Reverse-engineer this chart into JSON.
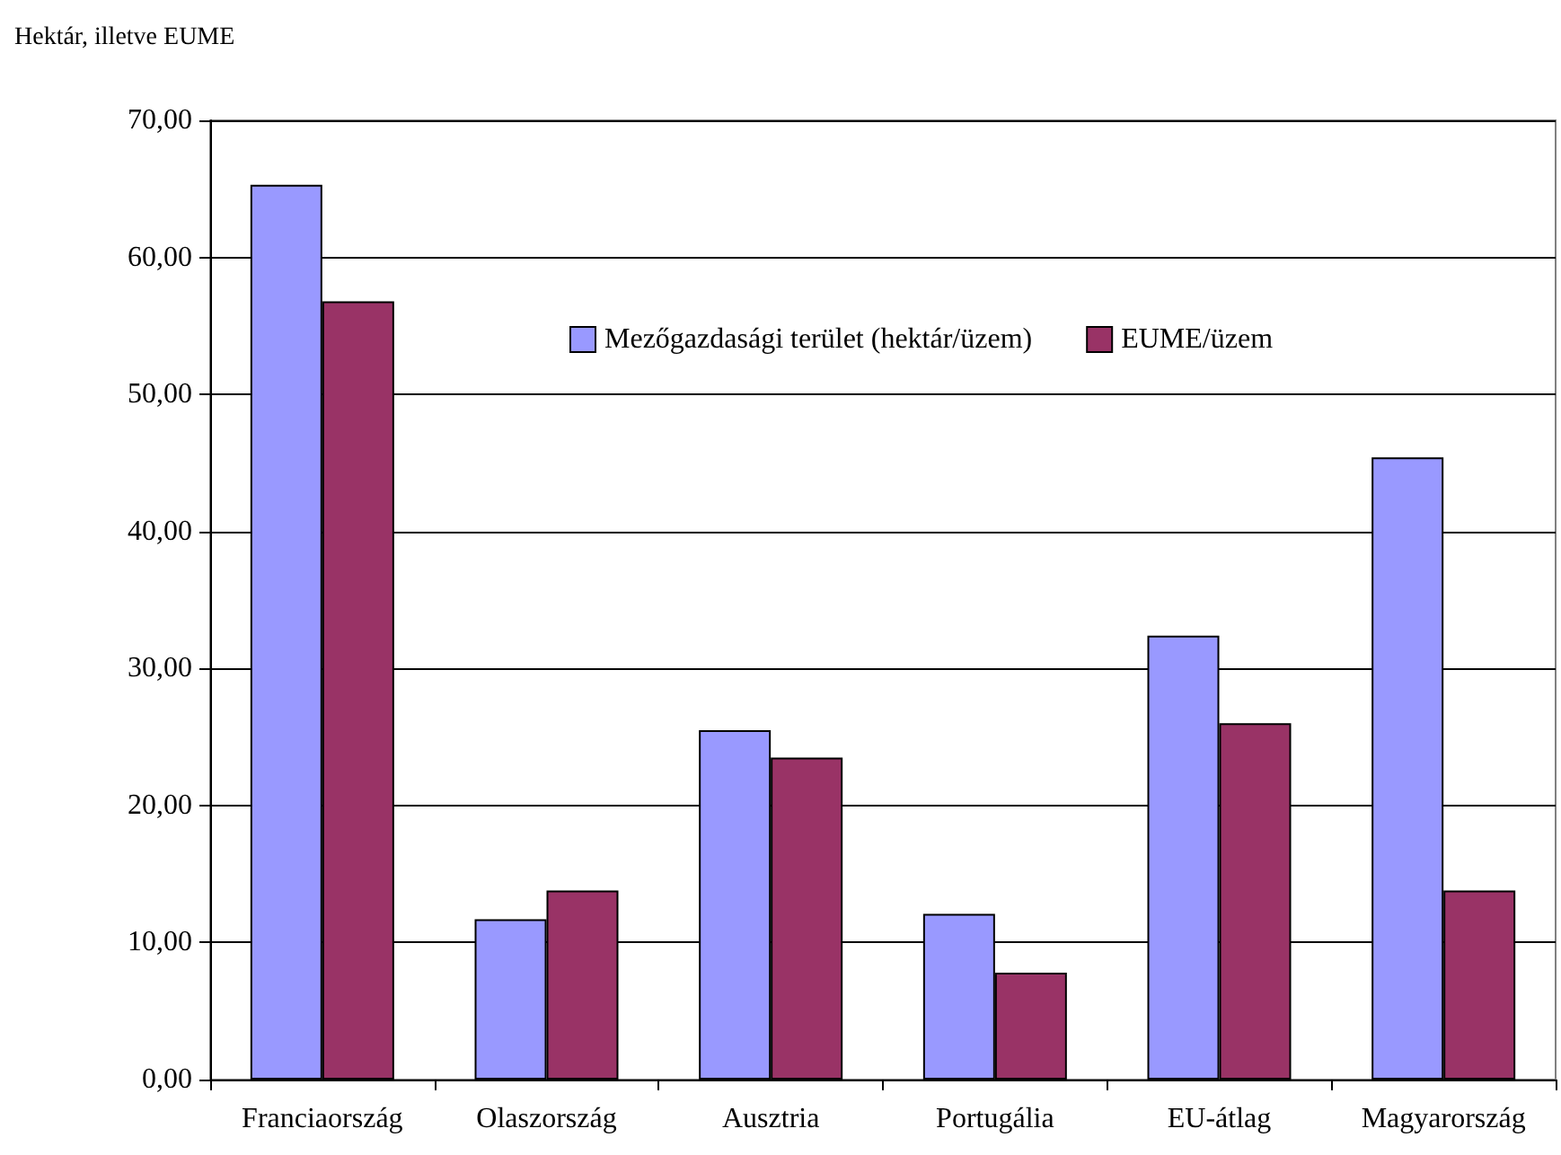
{
  "chart_data": {
    "type": "bar",
    "ylabel": "Hektár, illetve EUME",
    "categories": [
      "Franciaország",
      "Olaszország",
      "Ausztria",
      "Portugália",
      "EU-átlag",
      "Magyarország"
    ],
    "series": [
      {
        "name": "Mezőgazdasági terület (hektár/üzem)",
        "color": "#9999ff",
        "values": [
          65.3,
          11.7,
          25.5,
          12.1,
          32.4,
          45.4
        ]
      },
      {
        "name": "EUME/üzem",
        "color": "#993366",
        "values": [
          56.8,
          13.8,
          23.5,
          7.8,
          26.0,
          13.8
        ]
      }
    ],
    "ylim": [
      0,
      70
    ],
    "yticks": [
      {
        "value": 0,
        "label": "0,00"
      },
      {
        "value": 10,
        "label": "10,00"
      },
      {
        "value": 20,
        "label": "20,00"
      },
      {
        "value": 30,
        "label": "30,00"
      },
      {
        "value": 40,
        "label": "40,00"
      },
      {
        "value": 50,
        "label": "50,00"
      },
      {
        "value": 60,
        "label": "60,00"
      },
      {
        "value": 70,
        "label": "70,00"
      }
    ],
    "grid": "y",
    "legend": "top right"
  }
}
